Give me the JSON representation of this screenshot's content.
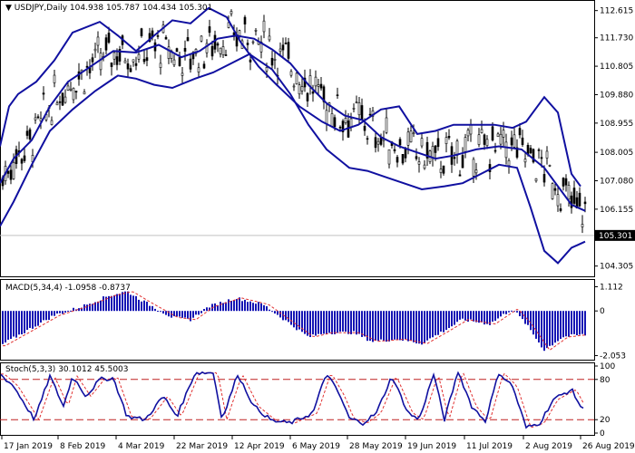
{
  "chart_data": [
    {
      "type": "candlestick",
      "panel": "price",
      "title": "USDJPY,Daily",
      "ohlc_label": "104.938 105.787 104.434 105.301",
      "ylim": [
        104.0,
        112.9
      ],
      "yticks": [
        "112.615",
        "111.730",
        "110.805",
        "109.880",
        "108.955",
        "108.005",
        "107.080",
        "106.155",
        "104.305"
      ],
      "ytick_values": [
        112.615,
        111.73,
        110.805,
        109.88,
        108.955,
        108.005,
        107.08,
        106.155,
        104.305
      ],
      "current_price_label": "105.301",
      "current_price": 105.301,
      "bollinger": {
        "upper": [
          [
            0,
            108.2
          ],
          [
            10,
            109.5
          ],
          [
            20,
            109.9
          ],
          [
            40,
            110.3
          ],
          [
            60,
            111.0
          ],
          [
            80,
            111.9
          ],
          [
            110,
            112.25
          ],
          [
            130,
            111.8
          ],
          [
            150,
            111.3
          ],
          [
            170,
            111.8
          ],
          [
            190,
            112.3
          ],
          [
            210,
            112.2
          ],
          [
            230,
            112.7
          ],
          [
            250,
            112.4
          ],
          [
            265,
            111.6
          ],
          [
            285,
            110.8
          ],
          [
            305,
            110.2
          ],
          [
            330,
            109.5
          ],
          [
            355,
            109.0
          ],
          [
            375,
            108.7
          ],
          [
            395,
            108.9
          ],
          [
            420,
            109.4
          ],
          [
            440,
            109.5
          ],
          [
            460,
            108.6
          ],
          [
            480,
            108.7
          ],
          [
            500,
            108.9
          ],
          [
            520,
            108.9
          ],
          [
            545,
            108.9
          ],
          [
            565,
            108.8
          ],
          [
            580,
            109.0
          ],
          [
            600,
            109.8
          ],
          [
            615,
            109.3
          ],
          [
            630,
            107.3
          ],
          [
            640,
            106.9
          ]
        ],
        "middle": [
          [
            0,
            107.0
          ],
          [
            15,
            107.8
          ],
          [
            35,
            108.4
          ],
          [
            55,
            109.5
          ],
          [
            75,
            110.3
          ],
          [
            100,
            110.8
          ],
          [
            125,
            111.3
          ],
          [
            150,
            111.25
          ],
          [
            175,
            111.5
          ],
          [
            200,
            111.1
          ],
          [
            220,
            111.3
          ],
          [
            240,
            111.7
          ],
          [
            260,
            111.8
          ],
          [
            280,
            111.7
          ],
          [
            300,
            111.35
          ],
          [
            320,
            110.9
          ],
          [
            340,
            110.2
          ],
          [
            360,
            109.6
          ],
          [
            380,
            109.2
          ],
          [
            400,
            109.05
          ],
          [
            420,
            108.5
          ],
          [
            440,
            108.2
          ],
          [
            460,
            108.0
          ],
          [
            480,
            107.8
          ],
          [
            500,
            107.9
          ],
          [
            525,
            108.1
          ],
          [
            550,
            108.2
          ],
          [
            575,
            108.1
          ],
          [
            600,
            107.5
          ],
          [
            615,
            106.9
          ],
          [
            630,
            106.3
          ],
          [
            645,
            106.1
          ]
        ],
        "lower": [
          [
            0,
            105.6
          ],
          [
            15,
            106.4
          ],
          [
            35,
            107.6
          ],
          [
            55,
            108.7
          ],
          [
            80,
            109.4
          ],
          [
            105,
            110.0
          ],
          [
            130,
            110.5
          ],
          [
            150,
            110.4
          ],
          [
            170,
            110.2
          ],
          [
            190,
            110.1
          ],
          [
            215,
            110.4
          ],
          [
            235,
            110.6
          ],
          [
            255,
            110.9
          ],
          [
            275,
            111.2
          ],
          [
            300,
            110.7
          ],
          [
            320,
            109.9
          ],
          [
            340,
            108.9
          ],
          [
            360,
            108.1
          ],
          [
            385,
            107.5
          ],
          [
            405,
            107.4
          ],
          [
            425,
            107.2
          ],
          [
            445,
            107.0
          ],
          [
            465,
            106.8
          ],
          [
            490,
            106.9
          ],
          [
            510,
            107.0
          ],
          [
            530,
            107.3
          ],
          [
            550,
            107.6
          ],
          [
            570,
            107.5
          ],
          [
            585,
            106.2
          ],
          [
            600,
            104.8
          ],
          [
            615,
            104.4
          ],
          [
            630,
            104.9
          ],
          [
            645,
            105.1
          ]
        ]
      }
    },
    {
      "type": "histogram",
      "panel": "macd",
      "title": "MACD(5,34,4)",
      "values_label": "-1.0958 -0.8737",
      "yticks": [
        "1.112",
        "0",
        "-2.053"
      ],
      "ytick_values": [
        1.112,
        0,
        -2.053
      ],
      "ylim": [
        -2.2,
        1.3
      ]
    },
    {
      "type": "line",
      "panel": "stochastic",
      "title": "Stoch(5,3,3)",
      "values_label": "30.1012 45.5003",
      "yticks": [
        "100",
        "80",
        "20",
        "0"
      ],
      "ytick_values": [
        100,
        80,
        20,
        0
      ],
      "levels": [
        80,
        20
      ],
      "ylim": [
        0,
        100
      ]
    }
  ],
  "x_axis": {
    "labels": [
      "17 Jan 2019",
      "8 Feb 2019",
      "4 Mar 2019",
      "22 Mar 2019",
      "12 Apr 2019",
      "6 May 2019",
      "28 May 2019",
      "19 Jun 2019",
      "11 Jul 2019",
      "2 Aug 2019",
      "26 Aug 2019"
    ]
  },
  "colors": {
    "bollinger": "#1010a0",
    "macd_bar": "#1414b4",
    "macd_signal": "#e03030",
    "stoch_main": "#1010a0",
    "stoch_signal": "#e03030",
    "level_line": "#c02020",
    "candle": "#000000"
  }
}
